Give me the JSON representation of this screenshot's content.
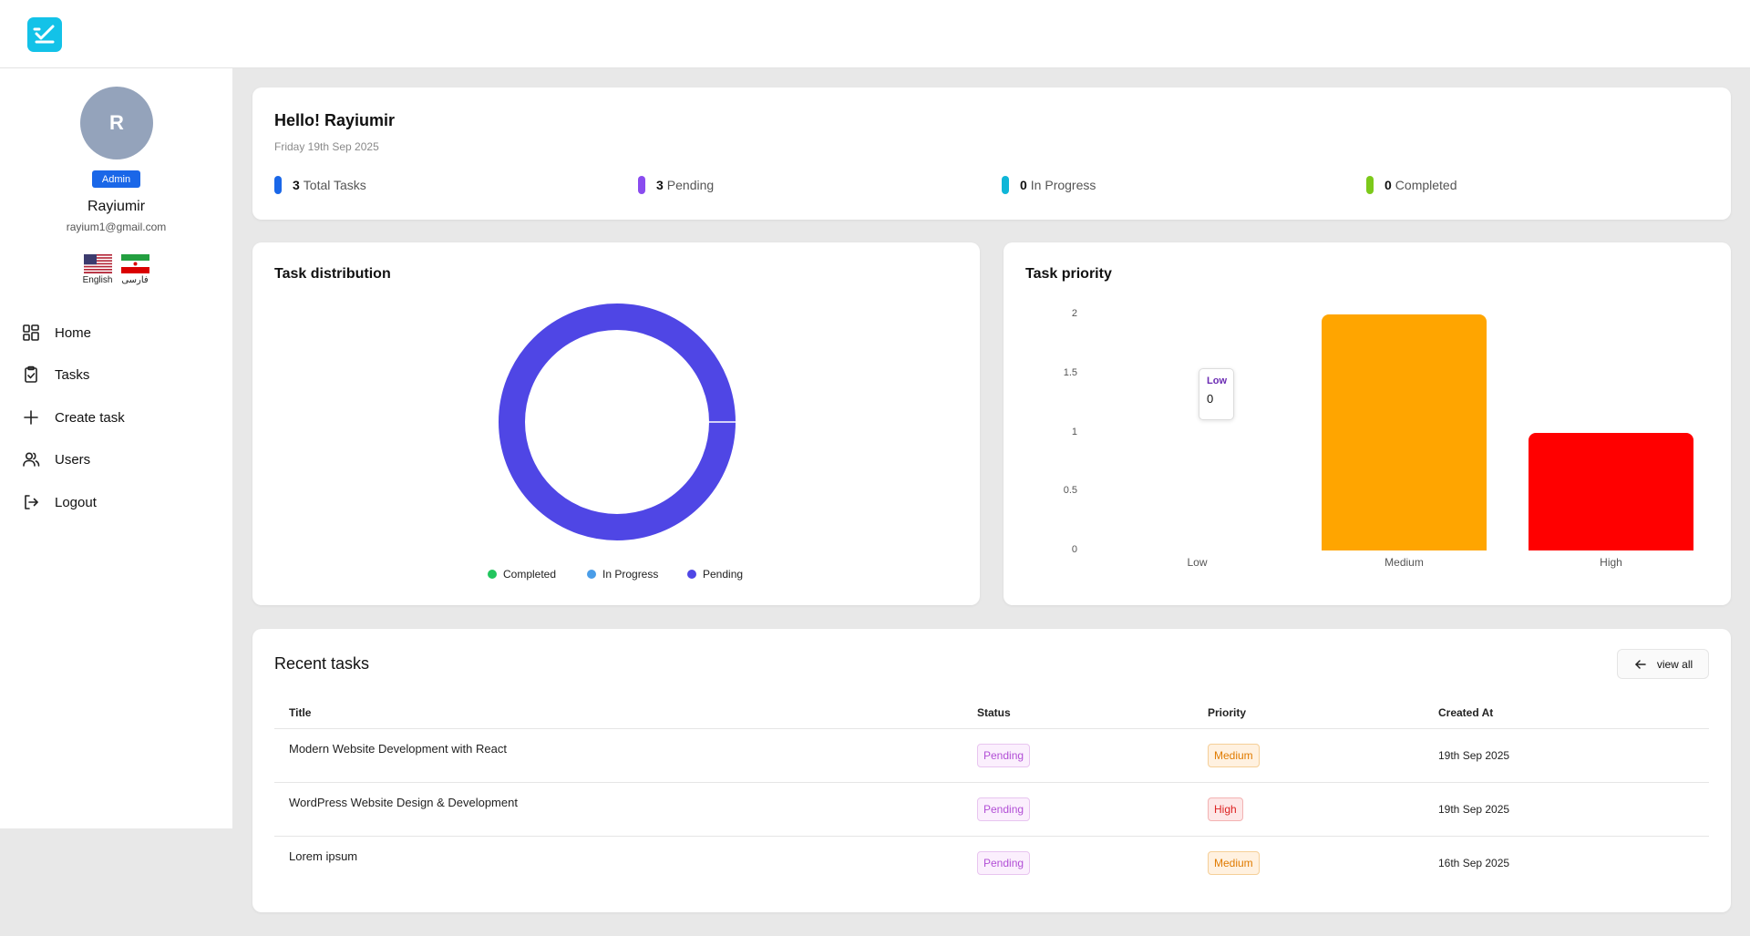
{
  "sidebar": {
    "avatar_initial": "R",
    "role": "Admin",
    "name": "Rayiumir",
    "email": "rayium1@gmail.com",
    "languages": [
      {
        "label": "English",
        "flag": "us-flag"
      },
      {
        "label": "فارسی",
        "flag": "iran-flag"
      }
    ],
    "nav": [
      {
        "label": "Home",
        "icon": "grid-icon"
      },
      {
        "label": "Tasks",
        "icon": "clipboard-check-icon"
      },
      {
        "label": "Create task",
        "icon": "plus-icon"
      },
      {
        "label": "Users",
        "icon": "users-icon"
      },
      {
        "label": "Logout",
        "icon": "logout-icon"
      }
    ]
  },
  "overview": {
    "greeting": "Hello! Rayiumir",
    "date": "Friday 19th Sep 2025",
    "stats": [
      {
        "value": "3",
        "label": "Total Tasks",
        "color": "#1a67e8"
      },
      {
        "value": "3",
        "label": "Pending",
        "color": "#8a4cef"
      },
      {
        "value": "0",
        "label": "In Progress",
        "color": "#0fb6d8"
      },
      {
        "value": "0",
        "label": "Completed",
        "color": "#7cc91a"
      }
    ]
  },
  "distribution": {
    "title": "Task distribution",
    "legend": [
      {
        "label": "Completed",
        "color": "#22c55e"
      },
      {
        "label": "In Progress",
        "color": "#4a9de8"
      },
      {
        "label": "Pending",
        "color": "#4f46e5"
      }
    ]
  },
  "priority": {
    "title": "Task priority",
    "tooltip": {
      "label": "Low",
      "value": "0"
    }
  },
  "chart_data": [
    {
      "type": "pie",
      "title": "Task distribution",
      "categories": [
        "Completed",
        "In Progress",
        "Pending"
      ],
      "values": [
        0,
        0,
        3
      ],
      "colors": [
        "#22c55e",
        "#4a9de8",
        "#4f46e5"
      ],
      "donut": true,
      "legend": "bottom"
    },
    {
      "type": "bar",
      "title": "Task priority",
      "categories": [
        "Low",
        "Medium",
        "High"
      ],
      "values": [
        0,
        2,
        1
      ],
      "colors": [
        "#3b82f6",
        "#ffa500",
        "#ff0000"
      ],
      "yticks": [
        "0",
        "0.5",
        "1",
        "1.5",
        "2"
      ],
      "ylim": [
        0,
        2
      ],
      "grid": false
    }
  ],
  "recent": {
    "title": "Recent tasks",
    "view_all": "view all",
    "headers": {
      "title": "Title",
      "status": "Status",
      "priority": "Priority",
      "created": "Created At"
    },
    "rows": [
      {
        "title": "Modern Website Development with React",
        "status": "Pending",
        "priority": "Medium",
        "created": "19th Sep 2025"
      },
      {
        "title": "WordPress Website Design & Development",
        "status": "Pending",
        "priority": "High",
        "created": "19th Sep 2025"
      },
      {
        "title": "Lorem ipsum",
        "status": "Pending",
        "priority": "Medium",
        "created": "16th Sep 2025"
      }
    ]
  }
}
